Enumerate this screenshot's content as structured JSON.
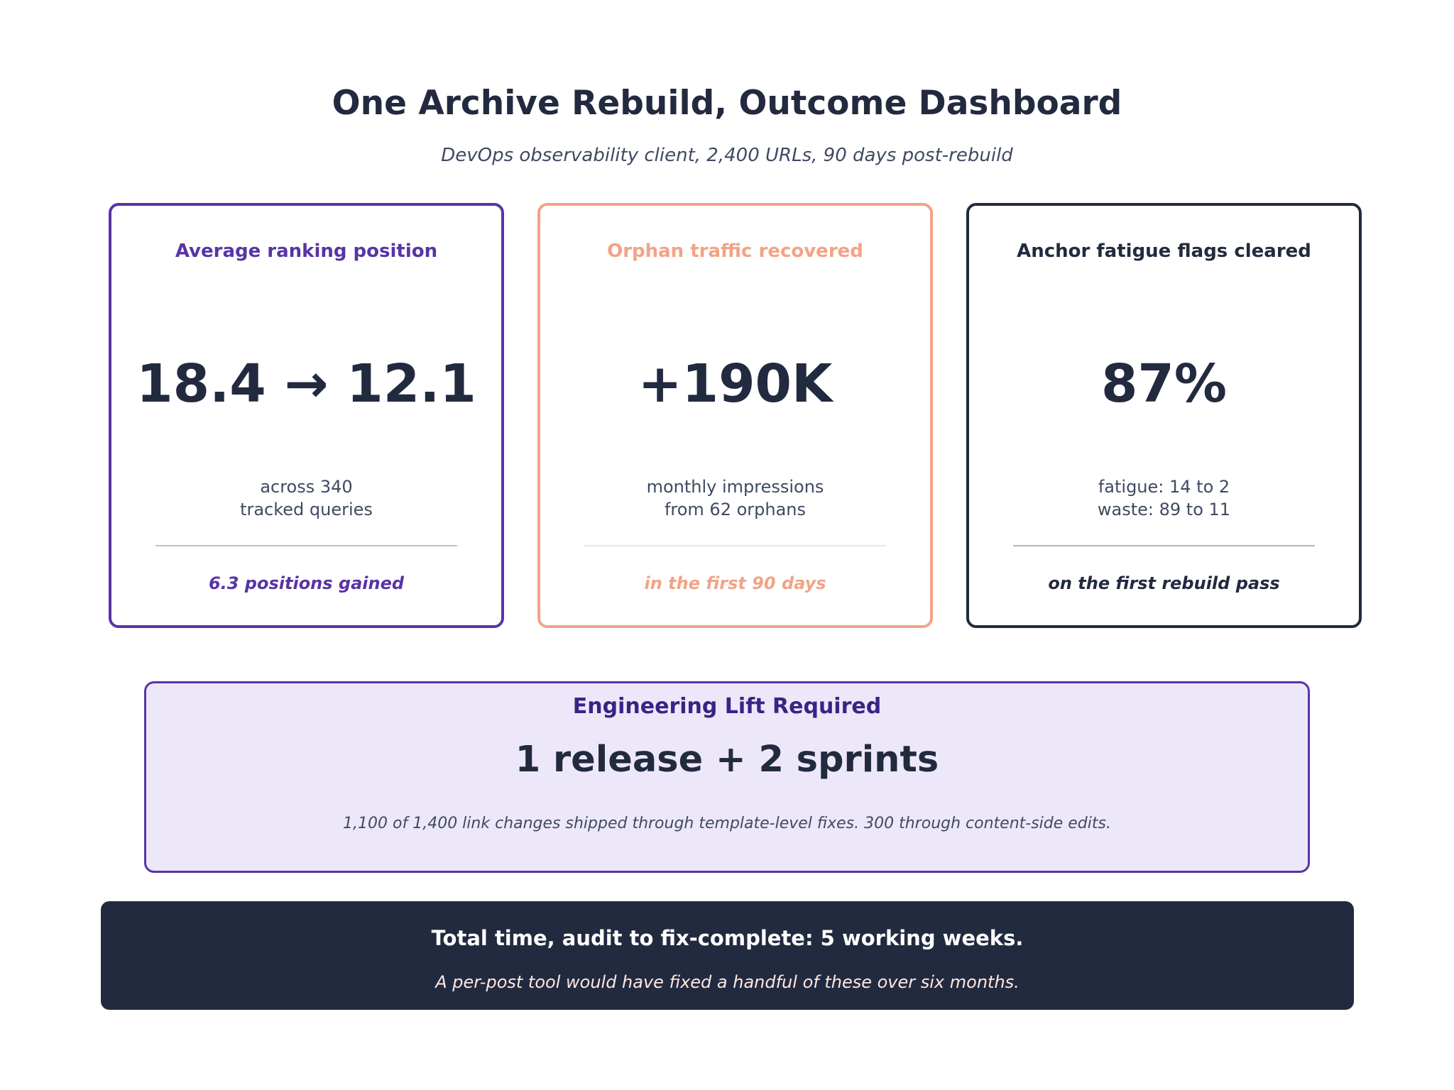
{
  "header": {
    "title": "One Archive Rebuild, Outcome Dashboard",
    "subtitle": "DevOps observability client, 2,400 URLs, 90 days post-rebuild"
  },
  "cards": [
    {
      "label": "Average ranking position",
      "metric": "18.4 → 12.1",
      "desc_lines": [
        "across 340",
        "tracked queries"
      ],
      "note": "6.3 positions gained",
      "accent": "#5834a6"
    },
    {
      "label": "Orphan traffic recovered",
      "metric": "+190K",
      "desc_lines": [
        "monthly impressions",
        "from 62 orphans"
      ],
      "note": "in the first 90 days",
      "accent": "#f2a386"
    },
    {
      "label": "Anchor fatigue flags cleared",
      "metric": "87%",
      "desc_lines": [
        "fatigue: 14 to 2",
        "waste: 89 to 11"
      ],
      "note": "on the first rebuild pass",
      "accent": "#222a3f"
    }
  ],
  "lift": {
    "label": "Engineering Lift Required",
    "value": "1 release + 2 sprints",
    "note": "1,100 of 1,400 link changes shipped through template-level fixes. 300 through content-side edits."
  },
  "footer": {
    "headline": "Total time, audit to fix-complete: 5 working weeks.",
    "subline": "A per-post tool would have fixed a handful of these over six months."
  }
}
